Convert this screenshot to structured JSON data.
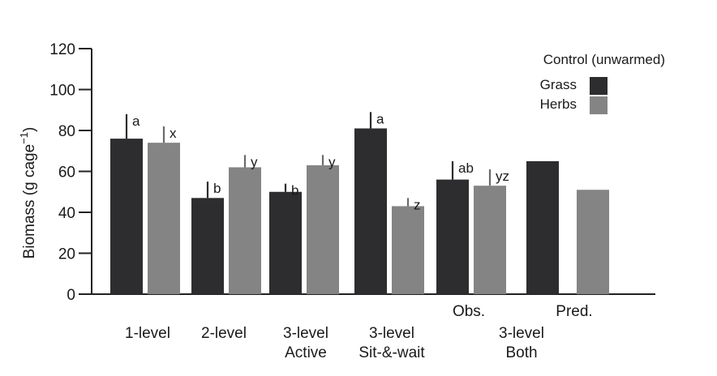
{
  "chart_data": {
    "type": "bar",
    "ylabel": "Biomass (g cage",
    "ylabel_sup": "−1",
    "ylabel_end": ")",
    "ylim": [
      0,
      120
    ],
    "yticks": [
      0,
      20,
      40,
      60,
      80,
      100,
      120
    ],
    "legend": {
      "title": "Control (unwarmed)",
      "entries": [
        {
          "name": "Grass",
          "color": "#2d2d2f"
        },
        {
          "name": "Herbs",
          "color": "#848484"
        }
      ]
    },
    "groups": [
      {
        "labels": [
          "1-level"
        ],
        "grass": {
          "value": 76,
          "err": 12,
          "sig": "a"
        },
        "herbs": {
          "value": 74,
          "err": 8,
          "sig": "x"
        }
      },
      {
        "labels": [
          "2-level"
        ],
        "grass": {
          "value": 47,
          "err": 8,
          "sig": "b"
        },
        "herbs": {
          "value": 62,
          "err": 6,
          "sig": "y"
        }
      },
      {
        "labels": [
          "3-level",
          "Active"
        ],
        "grass": {
          "value": 50,
          "err": 4,
          "sig": "b"
        },
        "herbs": {
          "value": 63,
          "err": 5,
          "sig": "y"
        }
      },
      {
        "labels": [
          "3-level",
          "Sit-&-wait"
        ],
        "grass": {
          "value": 81,
          "err": 8,
          "sig": "a"
        },
        "herbs": {
          "value": 43,
          "err": 4,
          "sig": "z"
        }
      },
      {
        "labels": [],
        "grass": {
          "value": 56,
          "err": 9,
          "sig": "ab"
        },
        "herbs": {
          "value": 53,
          "err": 8,
          "sig": "yz"
        }
      },
      {
        "labels": [],
        "grass": {
          "value": 65,
          "err": null,
          "sig": ""
        },
        "herbs": {
          "value": 51,
          "err": null,
          "sig": ""
        }
      }
    ],
    "extra_labels": {
      "obs": "Obs.",
      "pred": "Pred.",
      "both_line1": "3-level",
      "both_line2": "Both"
    }
  }
}
